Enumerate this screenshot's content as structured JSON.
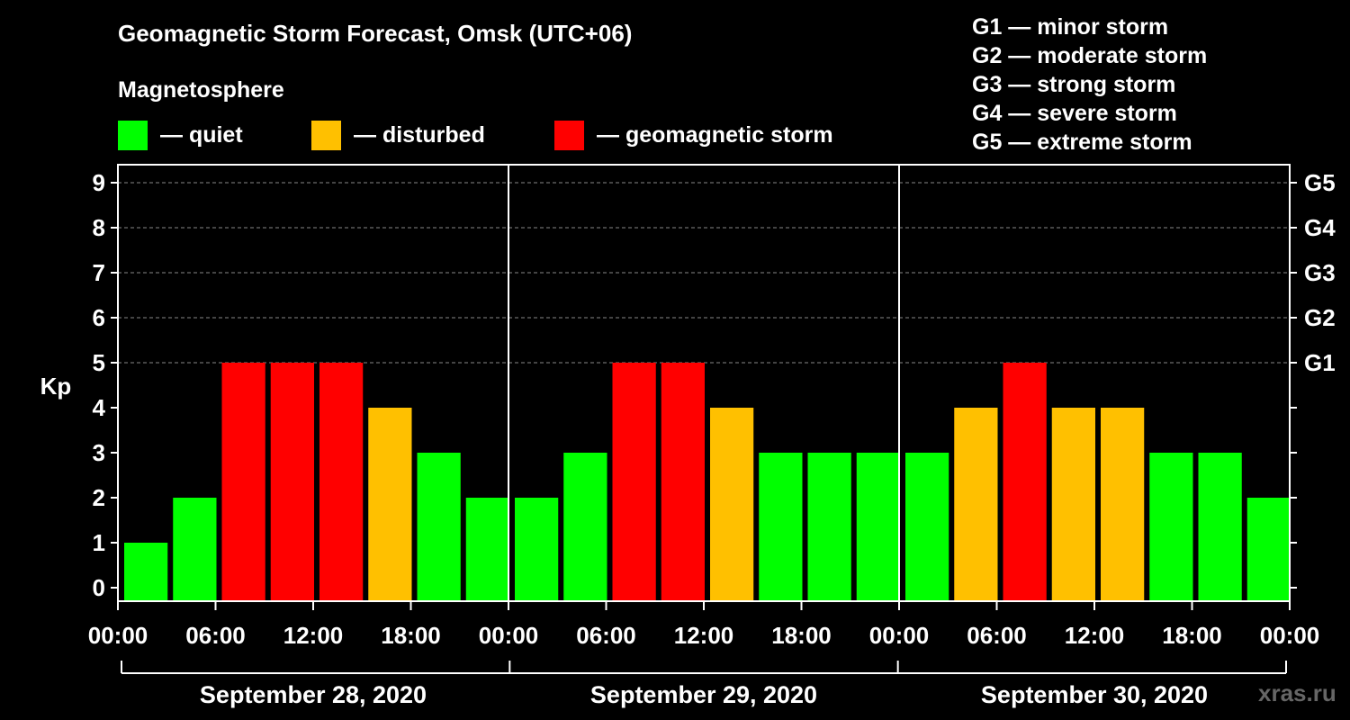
{
  "title": "Geomagnetic Storm Forecast, Omsk (UTC+06)",
  "subtitle": "Magnetosphere",
  "legend": [
    {
      "label": "— quiet",
      "color": "#00ff00"
    },
    {
      "label": "— disturbed",
      "color": "#ffc000"
    },
    {
      "label": "— geomagnetic storm",
      "color": "#ff0000"
    }
  ],
  "g_scale": [
    "G1 — minor storm",
    "G2 — moderate storm",
    "G3 — strong storm",
    "G4 — severe storm",
    "G5 — extreme storm"
  ],
  "watermark": "xras.ru",
  "chart_data": {
    "type": "bar",
    "ylabel": "Kp",
    "ylim": [
      0,
      9
    ],
    "yticks": [
      "0",
      "1",
      "2",
      "3",
      "4",
      "5",
      "6",
      "7",
      "8",
      "9"
    ],
    "right_ticks": [
      {
        "value": 5,
        "label": "G1"
      },
      {
        "value": 6,
        "label": "G2"
      },
      {
        "value": 7,
        "label": "G3"
      },
      {
        "value": 8,
        "label": "G4"
      },
      {
        "value": 9,
        "label": "G5"
      }
    ],
    "xticks": [
      "00:00",
      "06:00",
      "12:00",
      "18:00",
      "00:00",
      "06:00",
      "12:00",
      "18:00",
      "00:00",
      "06:00",
      "12:00",
      "18:00",
      "00:00"
    ],
    "days": [
      "September 28, 2020",
      "September 29, 2020",
      "September 30, 2020"
    ],
    "values": [
      1,
      2,
      5,
      5,
      5,
      4,
      3,
      2,
      2,
      3,
      5,
      5,
      4,
      3,
      3,
      3,
      3,
      4,
      5,
      4,
      4,
      3,
      3,
      2
    ],
    "colors": {
      "quiet": "#00ff00",
      "disturbed": "#ffc000",
      "storm": "#ff0000"
    },
    "thresholds": {
      "disturbed": 4,
      "storm": 5
    },
    "grid": true
  }
}
